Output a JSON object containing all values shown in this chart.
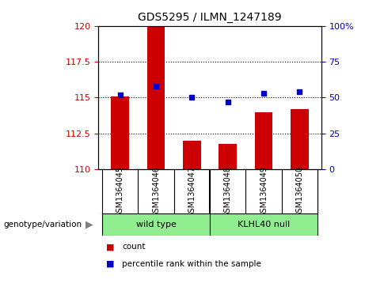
{
  "title": "GDS5295 / ILMN_1247189",
  "samples": [
    "GSM1364045",
    "GSM1364046",
    "GSM1364047",
    "GSM1364048",
    "GSM1364049",
    "GSM1364050"
  ],
  "count_values": [
    115.1,
    120.0,
    112.0,
    111.8,
    114.0,
    114.2
  ],
  "percentile_values": [
    52,
    58,
    50,
    47,
    53,
    54
  ],
  "ylim_left": [
    110,
    120
  ],
  "ylim_right": [
    0,
    100
  ],
  "yticks_left": [
    110,
    112.5,
    115,
    117.5,
    120
  ],
  "yticks_right": [
    0,
    25,
    50,
    75,
    100
  ],
  "bar_color": "#cc0000",
  "dot_color": "#0000cc",
  "bar_width": 0.5,
  "group_label": "genotype/variation",
  "legend_count_label": "count",
  "legend_percentile_label": "percentile rank within the sample",
  "tick_label_color_left": "#cc0000",
  "tick_label_color_right": "#0000cc",
  "background_color": "#ffffff",
  "plot_bg_color": "#ffffff",
  "sample_box_color": "#d3d3d3",
  "wt_color": "#90EE90",
  "kl_color": "#90EE90"
}
